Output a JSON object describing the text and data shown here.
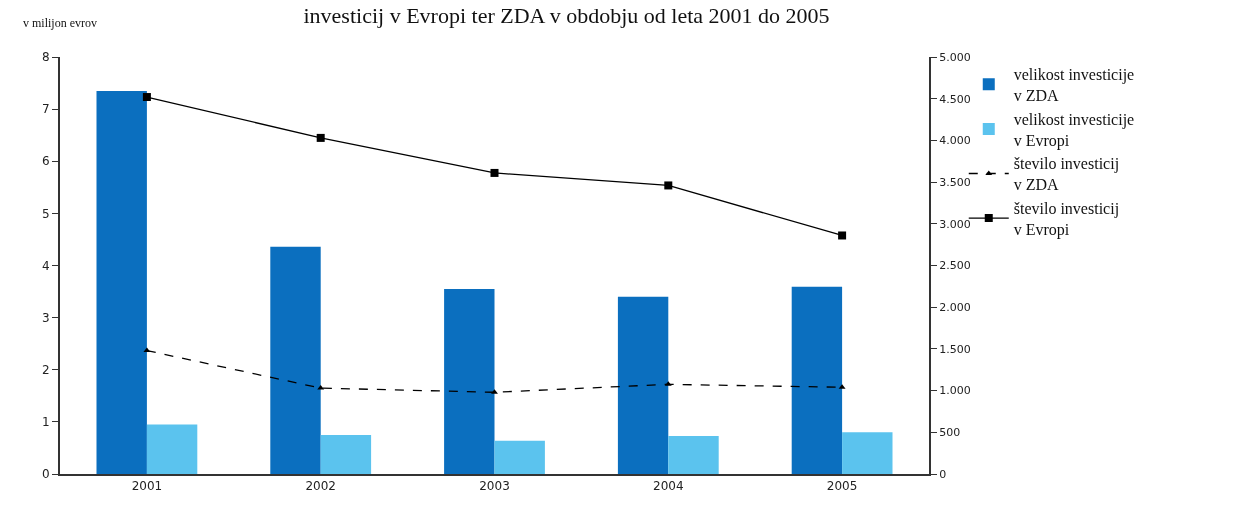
{
  "chart_data": {
    "type": "bar",
    "title": "investicij v Evropi ter ZDA v obdobju od leta 2001 do 2005",
    "ylabel": "v milijon evrov",
    "categories": [
      "2001",
      "2002",
      "2003",
      "2004",
      "2005"
    ],
    "series": [
      {
        "name": "velikost investicije v ZDA",
        "color": "#0b6fbf",
        "values": [
          7.35,
          4.36,
          3.55,
          3.4,
          3.59
        ]
      },
      {
        "name": "velikost investicije v Evropi",
        "color": "#5bc3ee",
        "values": [
          0.95,
          0.75,
          0.64,
          0.73,
          0.8
        ]
      },
      {
        "name": "število investicij v ZDA",
        "type": "line",
        "axis": "y2",
        "color": "#000000",
        "line_style": "dashed",
        "marker": "triangle",
        "values": [
          1480,
          1030,
          980,
          1075,
          1040
        ]
      },
      {
        "name": "število investicij v Evropi",
        "type": "line",
        "axis": "y2",
        "color": "#000000",
        "line_style": "solid",
        "marker": "square",
        "values": [
          4520,
          4030,
          3610,
          3460,
          2860
        ]
      }
    ],
    "ylim": [
      0,
      8
    ],
    "yticks": [
      0,
      1,
      2,
      3,
      4,
      5,
      6,
      7,
      8
    ],
    "y2lim": [
      0,
      5000
    ],
    "y2ticks": [
      0,
      500,
      {
        "value": 1000,
        "label": "1.000"
      },
      {
        "value": 1500,
        "label": "1.500"
      },
      {
        "value": 2000,
        "label": "2.000"
      },
      {
        "value": 2500,
        "label": "2.500"
      },
      {
        "value": 3000,
        "label": "3.000"
      },
      {
        "value": 3500,
        "label": "3.500"
      },
      {
        "value": 4000,
        "label": "4.000"
      },
      {
        "value": 4500,
        "label": "4.500"
      },
      {
        "value": 5000,
        "label": "5.000"
      }
    ],
    "grid": false,
    "legend": "right"
  }
}
